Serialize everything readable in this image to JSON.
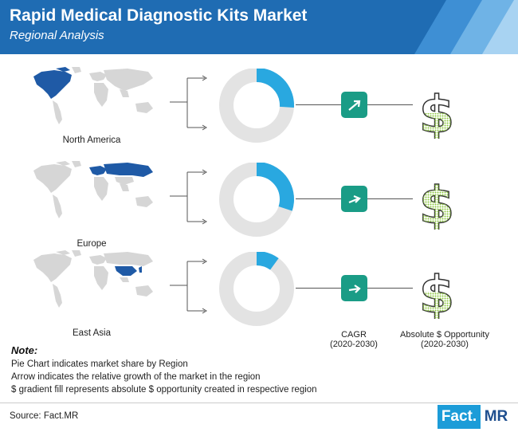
{
  "header": {
    "title": "Rapid Medical Diagnostic Kits Market",
    "subtitle": "Regional Analysis"
  },
  "regions": [
    {
      "name": "North America",
      "market_share": 0.26
    },
    {
      "name": "Europe",
      "market_share": 0.3
    },
    {
      "name": "East Asia",
      "market_share": 0.1
    }
  ],
  "columns": {
    "cagr_label": "CAGR",
    "cagr_period": "(2020-2030)",
    "opportunity_label": "Absolute $ Opportunity",
    "opportunity_period": "(2020-2030)"
  },
  "notes": {
    "title": "Note:",
    "lines": [
      "Pie Chart indicates market share by Region",
      "Arrow indicates the relative growth of the market in the region",
      "$ gradient fill represents absolute $ opportunity created in respective region"
    ]
  },
  "footer": {
    "source": "Source: Fact.MR",
    "logo_left": "Fact.",
    "logo_right": "MR"
  },
  "colors": {
    "header": "#1f6cb3",
    "map_highlight": "#1f5aa6",
    "donut_share": "#29a8e0",
    "donut_rest": "#e3e3e3",
    "arrow_box": "#1a9c86",
    "dollar_fill": "#8cc63f",
    "logo_blue": "#1c9cd8"
  },
  "icons": {
    "growth": "arrow-up-right-icon",
    "opportunity": "dollar-icon"
  }
}
